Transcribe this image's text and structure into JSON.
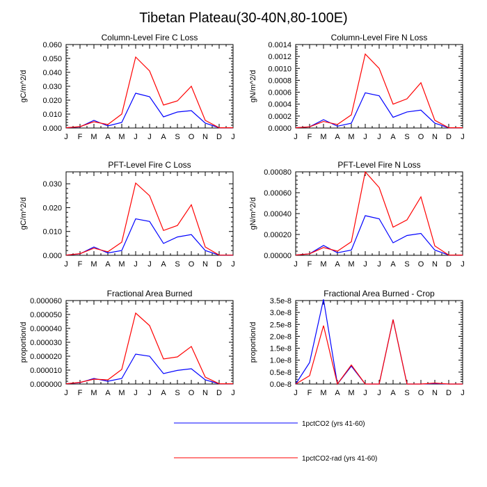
{
  "figure": {
    "title": "Tibetan Plateau(30-40N,80-100E)"
  },
  "months": [
    "J",
    "F",
    "M",
    "A",
    "M",
    "J",
    "J",
    "A",
    "S",
    "O",
    "N",
    "D",
    "J"
  ],
  "colors": {
    "series1": "#0000ff",
    "series2": "#ff0000",
    "frame": "#000000"
  },
  "legend": [
    {
      "label": "1pctCO2 (yrs 41-60)",
      "color": "#0000ff"
    },
    {
      "label": "1pctCO2-rad (yrs 41-60)",
      "color": "#ff0000"
    }
  ],
  "chart_data": [
    {
      "type": "line",
      "title": "Column-Level Fire C Loss",
      "ylabel": "gC/m^2/d",
      "ylim": [
        0,
        0.06
      ],
      "yticks": [
        0,
        0.01,
        0.02,
        0.03,
        0.04,
        0.05,
        0.06
      ],
      "ytick_labels": [
        "0.000",
        "0.010",
        "0.020",
        "0.030",
        "0.040",
        "0.050",
        "0.060"
      ],
      "series": [
        {
          "name": "1pctCO2 (yrs 41-60)",
          "values": [
            0.0002,
            0.0008,
            0.0055,
            0.0015,
            0.004,
            0.025,
            0.0225,
            0.008,
            0.0115,
            0.0125,
            0.0035,
            0.0002,
            0.0002
          ]
        },
        {
          "name": "1pctCO2-rad (yrs 41-60)",
          "values": [
            0.0002,
            0.001,
            0.0045,
            0.0025,
            0.01,
            0.051,
            0.041,
            0.0165,
            0.0195,
            0.03,
            0.0055,
            0.0002,
            0.0002
          ]
        }
      ]
    },
    {
      "type": "line",
      "title": "Column-Level Fire N Loss",
      "ylabel": "gN/m^2/d",
      "ylim": [
        0,
        0.0014
      ],
      "yticks": [
        0,
        0.0002,
        0.0004,
        0.0006,
        0.0008,
        0.001,
        0.0012,
        0.0014
      ],
      "ytick_labels": [
        "0.0000",
        "0.0002",
        "0.0004",
        "0.0006",
        "0.0008",
        "0.0010",
        "0.0012",
        "0.0014"
      ],
      "series": [
        {
          "name": "1pctCO2 (yrs 41-60)",
          "values": [
            5e-06,
            2e-05,
            0.00014,
            3e-05,
            8e-05,
            0.00059,
            0.00054,
            0.00018,
            0.00027,
            0.0003,
            8e-05,
            5e-06,
            5e-06
          ]
        },
        {
          "name": "1pctCO2-rad (yrs 41-60)",
          "values": [
            5e-06,
            2e-05,
            0.00011,
            6e-05,
            0.00022,
            0.00124,
            0.001,
            0.0004,
            0.00049,
            0.00076,
            0.00013,
            5e-06,
            5e-06
          ]
        }
      ]
    },
    {
      "type": "line",
      "title": "PFT-Level Fire C Loss",
      "ylabel": "gC/m^2/d",
      "ylim": [
        0,
        0.035
      ],
      "yticks": [
        0,
        0.01,
        0.02,
        0.03
      ],
      "ytick_labels": [
        "0.000",
        "0.010",
        "0.020",
        "0.030"
      ],
      "series": [
        {
          "name": "1pctCO2 (yrs 41-60)",
          "values": [
            0.0001,
            0.0006,
            0.0035,
            0.001,
            0.002,
            0.0153,
            0.0142,
            0.005,
            0.0077,
            0.0087,
            0.002,
            0.0001,
            0.0001
          ]
        },
        {
          "name": "1pctCO2-rad (yrs 41-60)",
          "values": [
            0.0001,
            0.0007,
            0.003,
            0.0015,
            0.0055,
            0.0303,
            0.025,
            0.0104,
            0.0125,
            0.0212,
            0.0035,
            0.0001,
            0.0001
          ]
        }
      ]
    },
    {
      "type": "line",
      "title": "PFT-Level Fire N Loss",
      "ylabel": "gN/m^2/d",
      "ylim": [
        0,
        0.0008
      ],
      "yticks": [
        0,
        0.0002,
        0.0004,
        0.0006,
        0.0008
      ],
      "ytick_labels": [
        "0.00000",
        "0.00020",
        "0.00040",
        "0.00060",
        "0.00080"
      ],
      "series": [
        {
          "name": "1pctCO2 (yrs 41-60)",
          "values": [
            3e-06,
            1.5e-05,
            9.5e-05,
            2.5e-05,
            5e-05,
            0.00038,
            0.00035,
            0.00012,
            0.00019,
            0.00021,
            5e-05,
            3e-06,
            3e-06
          ]
        },
        {
          "name": "1pctCO2-rad (yrs 41-60)",
          "values": [
            3e-06,
            1.5e-05,
            7.5e-05,
            4e-05,
            0.00013,
            0.0008,
            0.00065,
            0.00027,
            0.00034,
            0.00056,
            9e-05,
            3e-06,
            3e-06
          ]
        }
      ]
    },
    {
      "type": "line",
      "title": "Fractional Area Burned",
      "ylabel": "proportion/d",
      "ylim": [
        0,
        6e-05
      ],
      "yticks": [
        0,
        1e-05,
        2e-05,
        3e-05,
        4e-05,
        5e-05,
        6e-05
      ],
      "ytick_labels": [
        "0.000000",
        "0.000010",
        "0.000020",
        "0.000030",
        "0.000040",
        "0.000050",
        "0.000060"
      ],
      "series": [
        {
          "name": "1pctCO2 (yrs 41-60)",
          "values": [
            2e-07,
            1e-06,
            4e-06,
            2e-06,
            4e-06,
            2.15e-05,
            2e-05,
            7.5e-06,
            9.8e-06,
            1.1e-05,
            3e-06,
            2e-07,
            2e-07
          ]
        },
        {
          "name": "1pctCO2-rad (yrs 41-60)",
          "values": [
            2e-07,
            1.2e-06,
            3.5e-06,
            3e-06,
            1.05e-05,
            5.1e-05,
            4.2e-05,
            1.8e-05,
            1.95e-05,
            2.7e-05,
            5e-06,
            2e-07,
            2e-07
          ]
        }
      ]
    },
    {
      "type": "line",
      "title": "Fractional Area Burned - Crop",
      "ylabel": "proportion/d",
      "ylim": [
        0,
        3.5e-08
      ],
      "yticks": [
        0,
        5e-09,
        1e-08,
        1.5e-08,
        2e-08,
        2.5e-08,
        3e-08,
        3.5e-08
      ],
      "ytick_labels": [
        "0.0e-8",
        "0.5e-8",
        "1.0e-8",
        "1.5e-8",
        "2.0e-8",
        "2.5e-8",
        "3.0e-8",
        "3.5e-8"
      ],
      "series": [
        {
          "name": "1pctCO2 (yrs 41-60)",
          "values": [
            0,
            9e-09,
            3.55e-08,
            0,
            7.5e-09,
            0,
            0,
            2.7e-08,
            0,
            0,
            2e-10,
            0,
            0
          ]
        },
        {
          "name": "1pctCO2-rad (yrs 41-60)",
          "values": [
            0,
            3.5e-09,
            2.45e-08,
            0,
            8e-09,
            0,
            0,
            2.7e-08,
            0,
            0,
            4e-10,
            0,
            0
          ]
        }
      ]
    }
  ]
}
